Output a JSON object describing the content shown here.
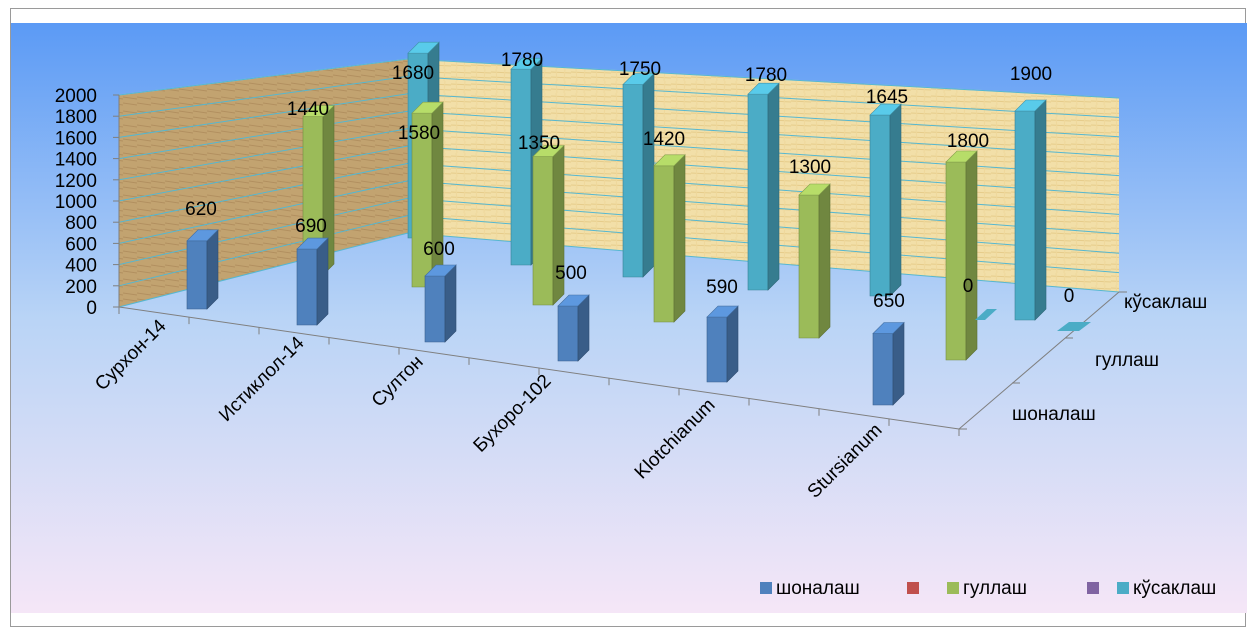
{
  "chart_data": {
    "type": "bar",
    "style": "3d-column",
    "categories": [
      "Сурхон-14",
      "Истиклол-14",
      "Султон",
      "Бухоро-102",
      "Klotchianum",
      "Stursianum"
    ],
    "series": [
      {
        "name": "шоналаш",
        "color": "#4f81bd",
        "values": [
          620,
          690,
          600,
          500,
          590,
          650
        ]
      },
      {
        "name": "гуллаш",
        "color": "#9bbb59",
        "values": [
          1440,
          1580,
          1350,
          1420,
          1300,
          1800
        ]
      },
      {
        "name": "кўсаклаш",
        "color": "#4bacc6",
        "values": [
          1680,
          1780,
          1750,
          1780,
          1645,
          1900
        ]
      }
    ],
    "depth_labels": [
      "кўсаклаш",
      "гуллаш",
      "шоналаш"
    ],
    "yticks": [
      "0",
      "200",
      "400",
      "600",
      "800",
      "1000",
      "1200",
      "1400",
      "1600",
      "1800",
      "2000"
    ],
    "ylim": [
      0,
      2000
    ],
    "grid": true,
    "legend": {
      "position": "bottom-right",
      "entries": [
        {
          "label": "шоналаш",
          "color": "#4f81bd"
        },
        {
          "label": "",
          "color": "#c0504d"
        },
        {
          "label": "гуллаш",
          "color": "#9bbb59"
        },
        {
          "label": "",
          "color": "#8064a2"
        },
        {
          "label": "кўсаклаш",
          "color": "#4bacc6"
        }
      ]
    },
    "data_labels": [
      [
        "620",
        "690",
        "600",
        "500",
        "590",
        "650"
      ],
      [
        "1440",
        "1580",
        "1350",
        "1420",
        "1300",
        "1800"
      ],
      [
        "1680",
        "1780",
        "1750",
        "1780",
        "1645",
        "1900"
      ]
    ],
    "extra_labels": [
      "0",
      "0"
    ]
  }
}
